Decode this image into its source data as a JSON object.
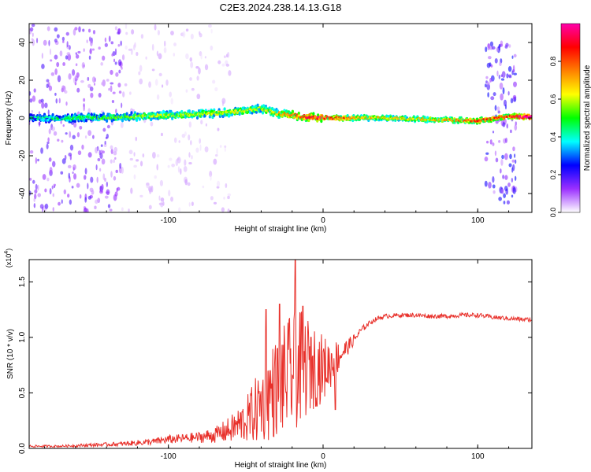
{
  "figure_title": "C2E3.2024.238.14.13.G18",
  "chart_data": [
    {
      "type": "heatmap",
      "title": "C2E3.2024.238.14.13.G18",
      "xlabel": "Height of straight line (km)",
      "ylabel": "Frequency (Hz)",
      "xlim": [
        -190,
        135
      ],
      "ylim": [
        -50,
        50
      ],
      "x_ticks": [
        -100,
        0,
        100
      ],
      "y_ticks": [
        -40,
        -20,
        0,
        20,
        40
      ],
      "colorbar": {
        "label": "Normalized spectral amplitude",
        "range": [
          0,
          1
        ],
        "ticks": [
          0.0,
          0.2,
          0.4,
          0.6,
          0.8
        ],
        "colors": [
          "#ffffff",
          "#9b30ff",
          "#0000ff",
          "#00ffff",
          "#00ff00",
          "#ffff00",
          "#ff8000",
          "#ff0000",
          "#ff00aa"
        ]
      },
      "ridge": {
        "x": [
          -190,
          -160,
          -130,
          -100,
          -80,
          -60,
          -40,
          -30,
          -20,
          -10,
          0,
          20,
          40,
          60,
          80,
          100,
          120,
          130
        ],
        "y": [
          0.0,
          0.0,
          0.5,
          1.5,
          2.0,
          3.0,
          5.0,
          2.5,
          1.5,
          0.5,
          0.0,
          0.0,
          0.0,
          -0.5,
          -1.0,
          -1.5,
          1.0,
          0.5
        ],
        "amplitude": [
          0.35,
          0.4,
          0.45,
          0.5,
          0.5,
          0.5,
          0.5,
          0.55,
          0.65,
          0.75,
          0.8,
          0.6,
          0.55,
          0.55,
          0.6,
          0.7,
          0.7,
          0.9
        ]
      },
      "scatter_regions": [
        {
          "x_range": [
            -190,
            -130
          ],
          "y_range": [
            -50,
            50
          ],
          "amplitude": 0.15
        },
        {
          "x_range": [
            -130,
            -60
          ],
          "y_range": [
            -50,
            50
          ],
          "amplitude": 0.05
        },
        {
          "x_range": [
            105,
            125
          ],
          "y_range": [
            -45,
            40
          ],
          "amplitude": 0.2
        }
      ]
    },
    {
      "type": "line",
      "xlabel": "Height of straight line (km)",
      "ylabel": "SNR (10 * v/v)",
      "y_multiplier": "(x10",
      "y_multiplier_exp": "4",
      "xlim": [
        -190,
        135
      ],
      "ylim": [
        0,
        1.7
      ],
      "x_ticks": [
        -100,
        0,
        100
      ],
      "y_ticks": [
        0.0,
        0.5,
        1.0,
        1.5
      ],
      "y_tick_labels": [
        "0.0",
        "0.5",
        "1.0",
        "1.5"
      ],
      "series": [
        {
          "color": "#e8302a",
          "x": [
            -190,
            -170,
            -150,
            -130,
            -110,
            -100,
            -90,
            -80,
            -70,
            -60,
            -50,
            -45,
            -40,
            -35,
            -30,
            -25,
            -20,
            -15,
            -10,
            -5,
            0,
            5,
            10,
            15,
            20,
            25,
            30,
            35,
            40,
            50,
            60,
            70,
            80,
            90,
            100,
            110,
            120,
            130,
            135
          ],
          "y": [
            0.02,
            0.02,
            0.03,
            0.04,
            0.06,
            0.08,
            0.09,
            0.1,
            0.12,
            0.17,
            0.25,
            0.32,
            0.4,
            0.48,
            0.55,
            0.62,
            0.68,
            0.72,
            0.75,
            0.74,
            0.72,
            0.76,
            0.83,
            0.9,
            0.98,
            1.07,
            1.13,
            1.17,
            1.19,
            1.2,
            1.2,
            1.19,
            1.19,
            1.2,
            1.2,
            1.18,
            1.17,
            1.16,
            1.16
          ],
          "noise_amplitude": [
            0.01,
            0.01,
            0.015,
            0.02,
            0.03,
            0.04,
            0.04,
            0.05,
            0.07,
            0.12,
            0.2,
            0.28,
            0.35,
            0.42,
            0.45,
            0.5,
            0.55,
            0.52,
            0.45,
            0.38,
            0.3,
            0.22,
            0.15,
            0.08,
            0.05,
            0.03,
            0.02,
            0.02,
            0.02,
            0.02,
            0.02,
            0.02,
            0.02,
            0.02,
            0.02,
            0.02,
            0.02,
            0.02,
            0.02
          ],
          "spikes": [
            {
              "x": -37,
              "y": 1.25
            },
            {
              "x": -28,
              "y": 1.3
            },
            {
              "x": -18,
              "y": 1.7
            },
            {
              "x": -13,
              "y": 1.28
            },
            {
              "x": -8,
              "y": 1.0
            },
            {
              "x": 8,
              "y": 0.35
            }
          ]
        }
      ]
    }
  ]
}
